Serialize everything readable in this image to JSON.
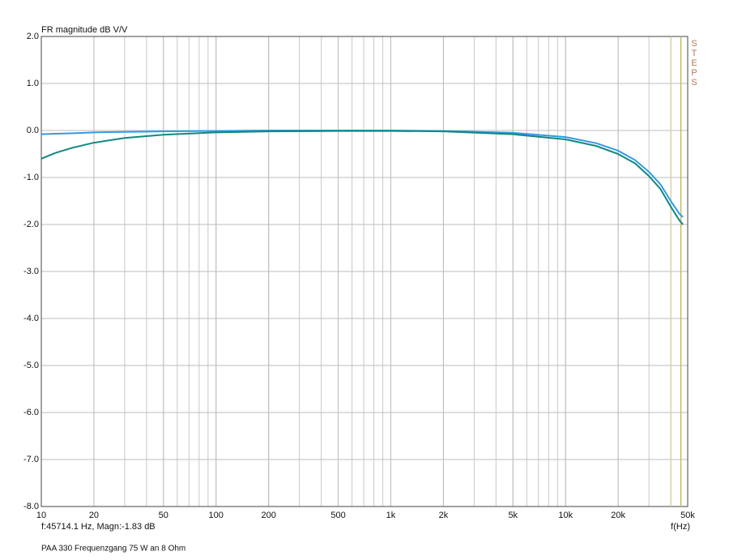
{
  "chart_data": {
    "type": "line",
    "title": "FR magnitude dB V/V",
    "x_label": "f(Hz)",
    "caption": "PAA 330 Frequenzgang 75 W an 8 Ohm",
    "side_label": "STEPS",
    "cursor": {
      "x": 45714.1,
      "label": "f:45714.1 Hz, Magn:-1.83 dB"
    },
    "x_scale": "log",
    "grid": true,
    "xlim": [
      10,
      50000
    ],
    "ylim": [
      -8,
      2
    ],
    "xticks": [
      10,
      20,
      50,
      100,
      200,
      500,
      {
        "value": 1000,
        "label": "1k"
      },
      {
        "value": 2000,
        "label": "2k"
      },
      {
        "value": 5000,
        "label": "5k"
      },
      {
        "value": 10000,
        "label": "10k"
      },
      {
        "value": 20000,
        "label": "20k"
      },
      {
        "value": 50000,
        "label": "50k"
      }
    ],
    "yticks": [
      {
        "value": 2,
        "label": "2.0"
      },
      {
        "value": 1,
        "label": "1.0"
      },
      {
        "value": 0,
        "label": "0.0"
      },
      {
        "value": -1,
        "label": "-1.0"
      },
      {
        "value": -2,
        "label": "-2.0"
      },
      {
        "value": -3,
        "label": "-3.0"
      },
      {
        "value": -4,
        "label": "-4.0"
      },
      {
        "value": -5,
        "label": "-5.0"
      },
      {
        "value": -6,
        "label": "-6.0"
      },
      {
        "value": -7,
        "label": "-7.0"
      },
      {
        "value": -8,
        "label": "-8.0"
      }
    ],
    "x": [
      10,
      12,
      15,
      20,
      30,
      50,
      100,
      200,
      500,
      1000,
      2000,
      5000,
      10000,
      15000,
      20000,
      25000,
      30000,
      35000,
      40000,
      45000,
      47000
    ],
    "series": [
      {
        "color": "#2b9ce8",
        "values": [
          -0.08,
          -0.07,
          -0.06,
          -0.04,
          -0.03,
          -0.02,
          -0.01,
          0,
          0,
          0,
          -0.01,
          -0.05,
          -0.14,
          -0.27,
          -0.43,
          -0.63,
          -0.88,
          -1.15,
          -1.5,
          -1.78,
          -1.84
        ]
      },
      {
        "color": "#14877f",
        "values": [
          -0.6,
          -0.48,
          -0.37,
          -0.26,
          -0.16,
          -0.09,
          -0.04,
          -0.02,
          -0.01,
          -0.01,
          -0.02,
          -0.08,
          -0.19,
          -0.33,
          -0.5,
          -0.7,
          -0.97,
          -1.25,
          -1.62,
          -1.92,
          -2.0
        ]
      }
    ]
  }
}
